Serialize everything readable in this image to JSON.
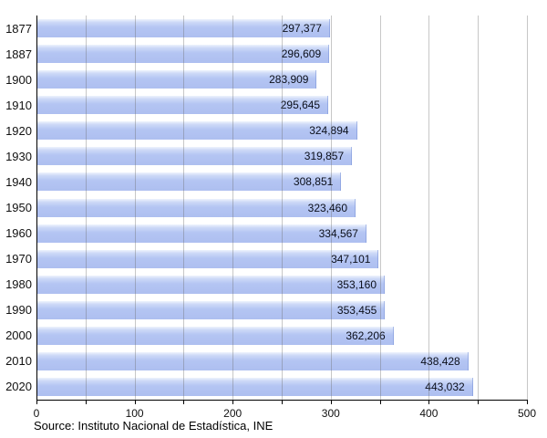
{
  "chart_data": {
    "type": "bar",
    "orientation": "horizontal",
    "title": "",
    "categories": [
      "1877",
      "1887",
      "1900",
      "1910",
      "1920",
      "1930",
      "1940",
      "1950",
      "1960",
      "1970",
      "1980",
      "1990",
      "2000",
      "2010",
      "2020"
    ],
    "values": [
      297377,
      296609,
      283909,
      295645,
      324894,
      319857,
      308851,
      323460,
      334567,
      347101,
      353160,
      353455,
      362206,
      438428,
      443032
    ],
    "value_labels": [
      "297,377",
      "296,609",
      "283,909",
      "295,645",
      "324,894",
      "319,857",
      "308,851",
      "323,460",
      "334,567",
      "347,101",
      "353,160",
      "353,455",
      "362,206",
      "438,428",
      "443,032"
    ],
    "x_axis": {
      "min": 0,
      "max": 500,
      "unit_divisor": 1000,
      "major_ticks": [
        0,
        100,
        200,
        300,
        400,
        500
      ],
      "major_tick_labels": [
        "0",
        "100",
        "200",
        "300",
        "400",
        "500"
      ],
      "minor_tick_interval": 50
    },
    "grid": "vertical lines every 50 units, drawn over bars",
    "legend": "none",
    "source": "Source: Instituto Nacional de Estadística, INE",
    "colors": {
      "bar_fill": "#b2c3f1",
      "bar_fill_top": "#eef3fd",
      "bar_edge": "#7891d7",
      "gridline": "#bcbcbc",
      "axis": "#000000",
      "value_text": "#0b0f1a",
      "label_text": "#111111",
      "background": "#ffffff"
    }
  }
}
